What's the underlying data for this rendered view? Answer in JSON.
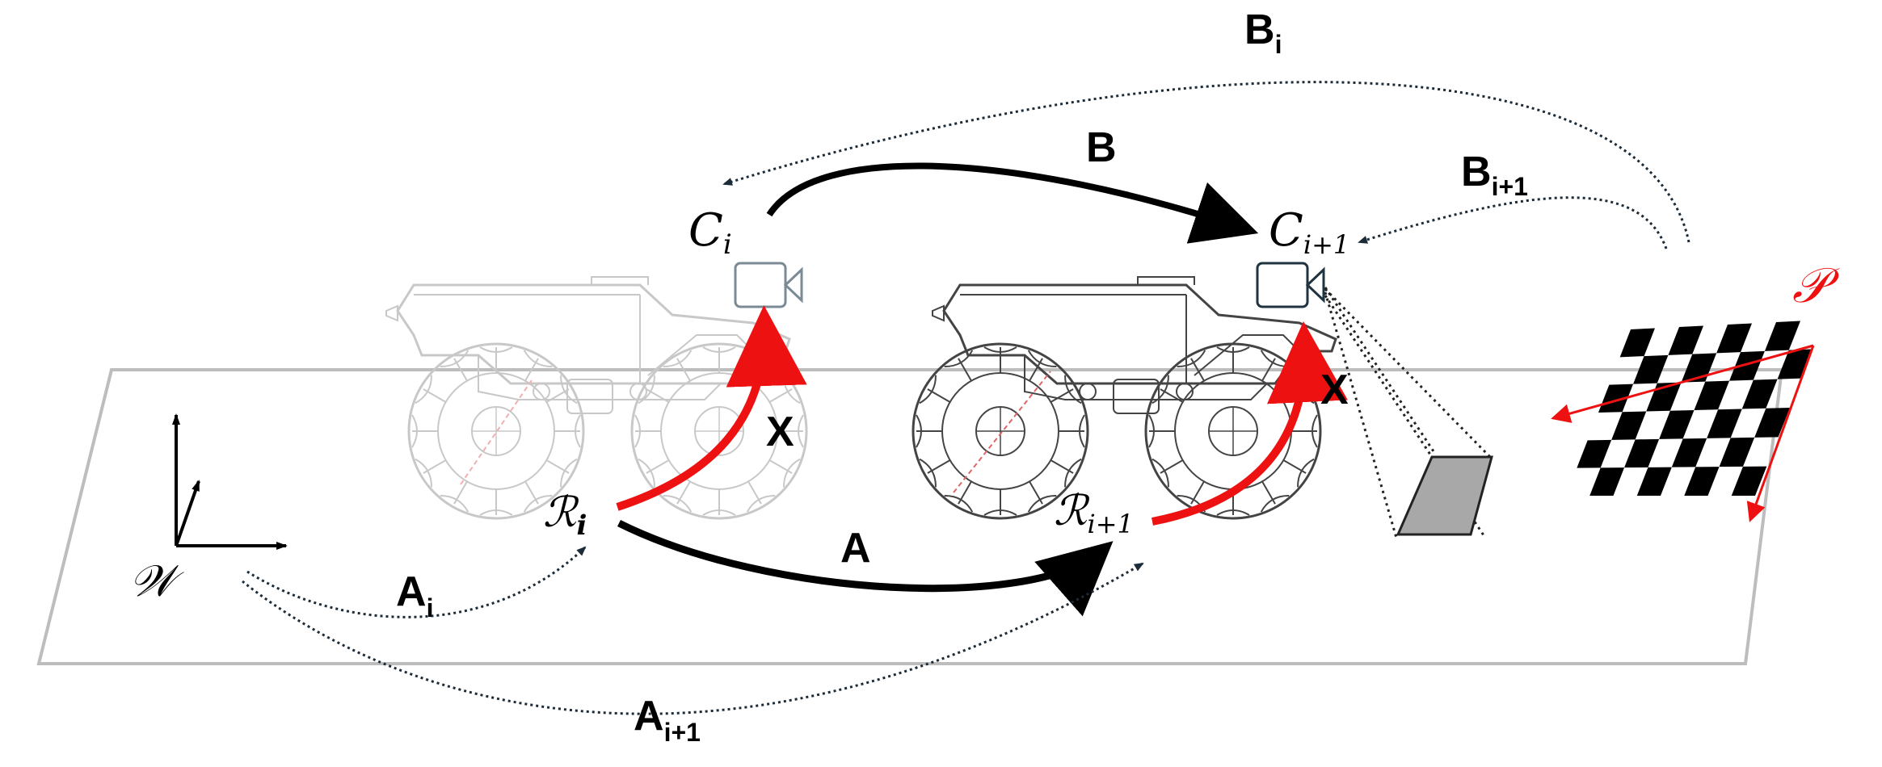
{
  "diagram": {
    "frames": {
      "world": "𝒲",
      "robot_i": "ℛ",
      "robot_i_sub": "i",
      "robot_next": "ℛ",
      "robot_next_sub": "i+1",
      "camera_i": "C",
      "camera_i_sub": "i",
      "camera_next": "C",
      "camera_next_sub": "i+1",
      "pattern": "𝒫"
    },
    "transforms": {
      "A": "A",
      "B": "B",
      "X_i": "X",
      "X_next": "X",
      "A_i_base": "A",
      "A_i_sub": "i",
      "A_next_base": "A",
      "A_next_sub": "i+1",
      "B_i_base": "B",
      "B_i_sub": "i",
      "B_next_base": "B",
      "B_next_sub": "i+1"
    },
    "colors": {
      "hand_eye_arrow": "#ee1111",
      "pattern_label": "#ee1111",
      "ground_plane": "#bdbdbd",
      "robot_faded": "#c8c8c8",
      "robot_solid": "#444444",
      "camera_faded": "#7b8b96",
      "camera_solid": "#1f3340",
      "image_plane": "#a8a8a8",
      "dotted_arrow": "#1c2b38"
    }
  }
}
